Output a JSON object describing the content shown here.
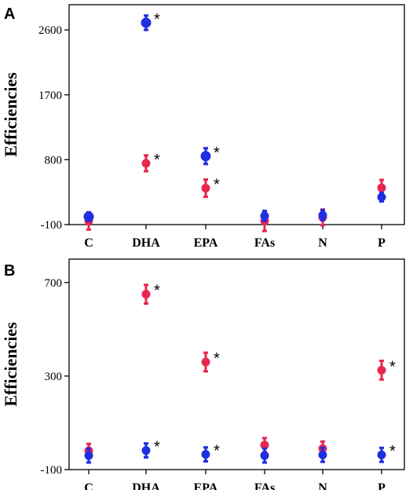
{
  "colors": {
    "red": "#e8274f",
    "blue": "#1f2ee0",
    "axis": "#000000"
  },
  "chart_data": [
    {
      "type": "scatter",
      "panel": "A",
      "ylabel": "Efficiencies",
      "ylim": [
        -100,
        2950
      ],
      "yticks": [
        -100,
        800,
        1700,
        2600
      ],
      "categories": [
        "C",
        "DHA",
        "EPA",
        "FAs",
        "N",
        "P"
      ],
      "series": [
        {
          "color": "red",
          "values": [
            -50,
            750,
            405,
            -50,
            0,
            410
          ],
          "errors": [
            120,
            110,
            120,
            140,
            110,
            110
          ],
          "significant": [
            false,
            true,
            true,
            false,
            false,
            false
          ]
        },
        {
          "color": "blue",
          "values": [
            10,
            2700,
            850,
            20,
            30,
            280
          ],
          "errors": [
            60,
            100,
            110,
            70,
            70,
            60
          ],
          "significant": [
            false,
            true,
            true,
            false,
            false,
            false
          ]
        }
      ]
    },
    {
      "type": "scatter",
      "panel": "B",
      "ylabel": "Efficiencies",
      "ylim": [
        -100,
        800
      ],
      "yticks": [
        -100,
        300,
        700
      ],
      "categories": [
        "C",
        "DHA",
        "EPA",
        "FAs",
        "N",
        "P"
      ],
      "series": [
        {
          "color": "red",
          "values": [
            -20,
            650,
            360,
            5,
            -10,
            325
          ],
          "errors": [
            30,
            40,
            40,
            30,
            30,
            40
          ],
          "significant": [
            false,
            true,
            true,
            false,
            false,
            true
          ]
        },
        {
          "color": "blue",
          "values": [
            -40,
            -18,
            -35,
            -40,
            -37,
            -37
          ],
          "errors": [
            30,
            30,
            30,
            30,
            30,
            30
          ],
          "significant": [
            false,
            true,
            true,
            false,
            false,
            true
          ]
        }
      ]
    }
  ]
}
